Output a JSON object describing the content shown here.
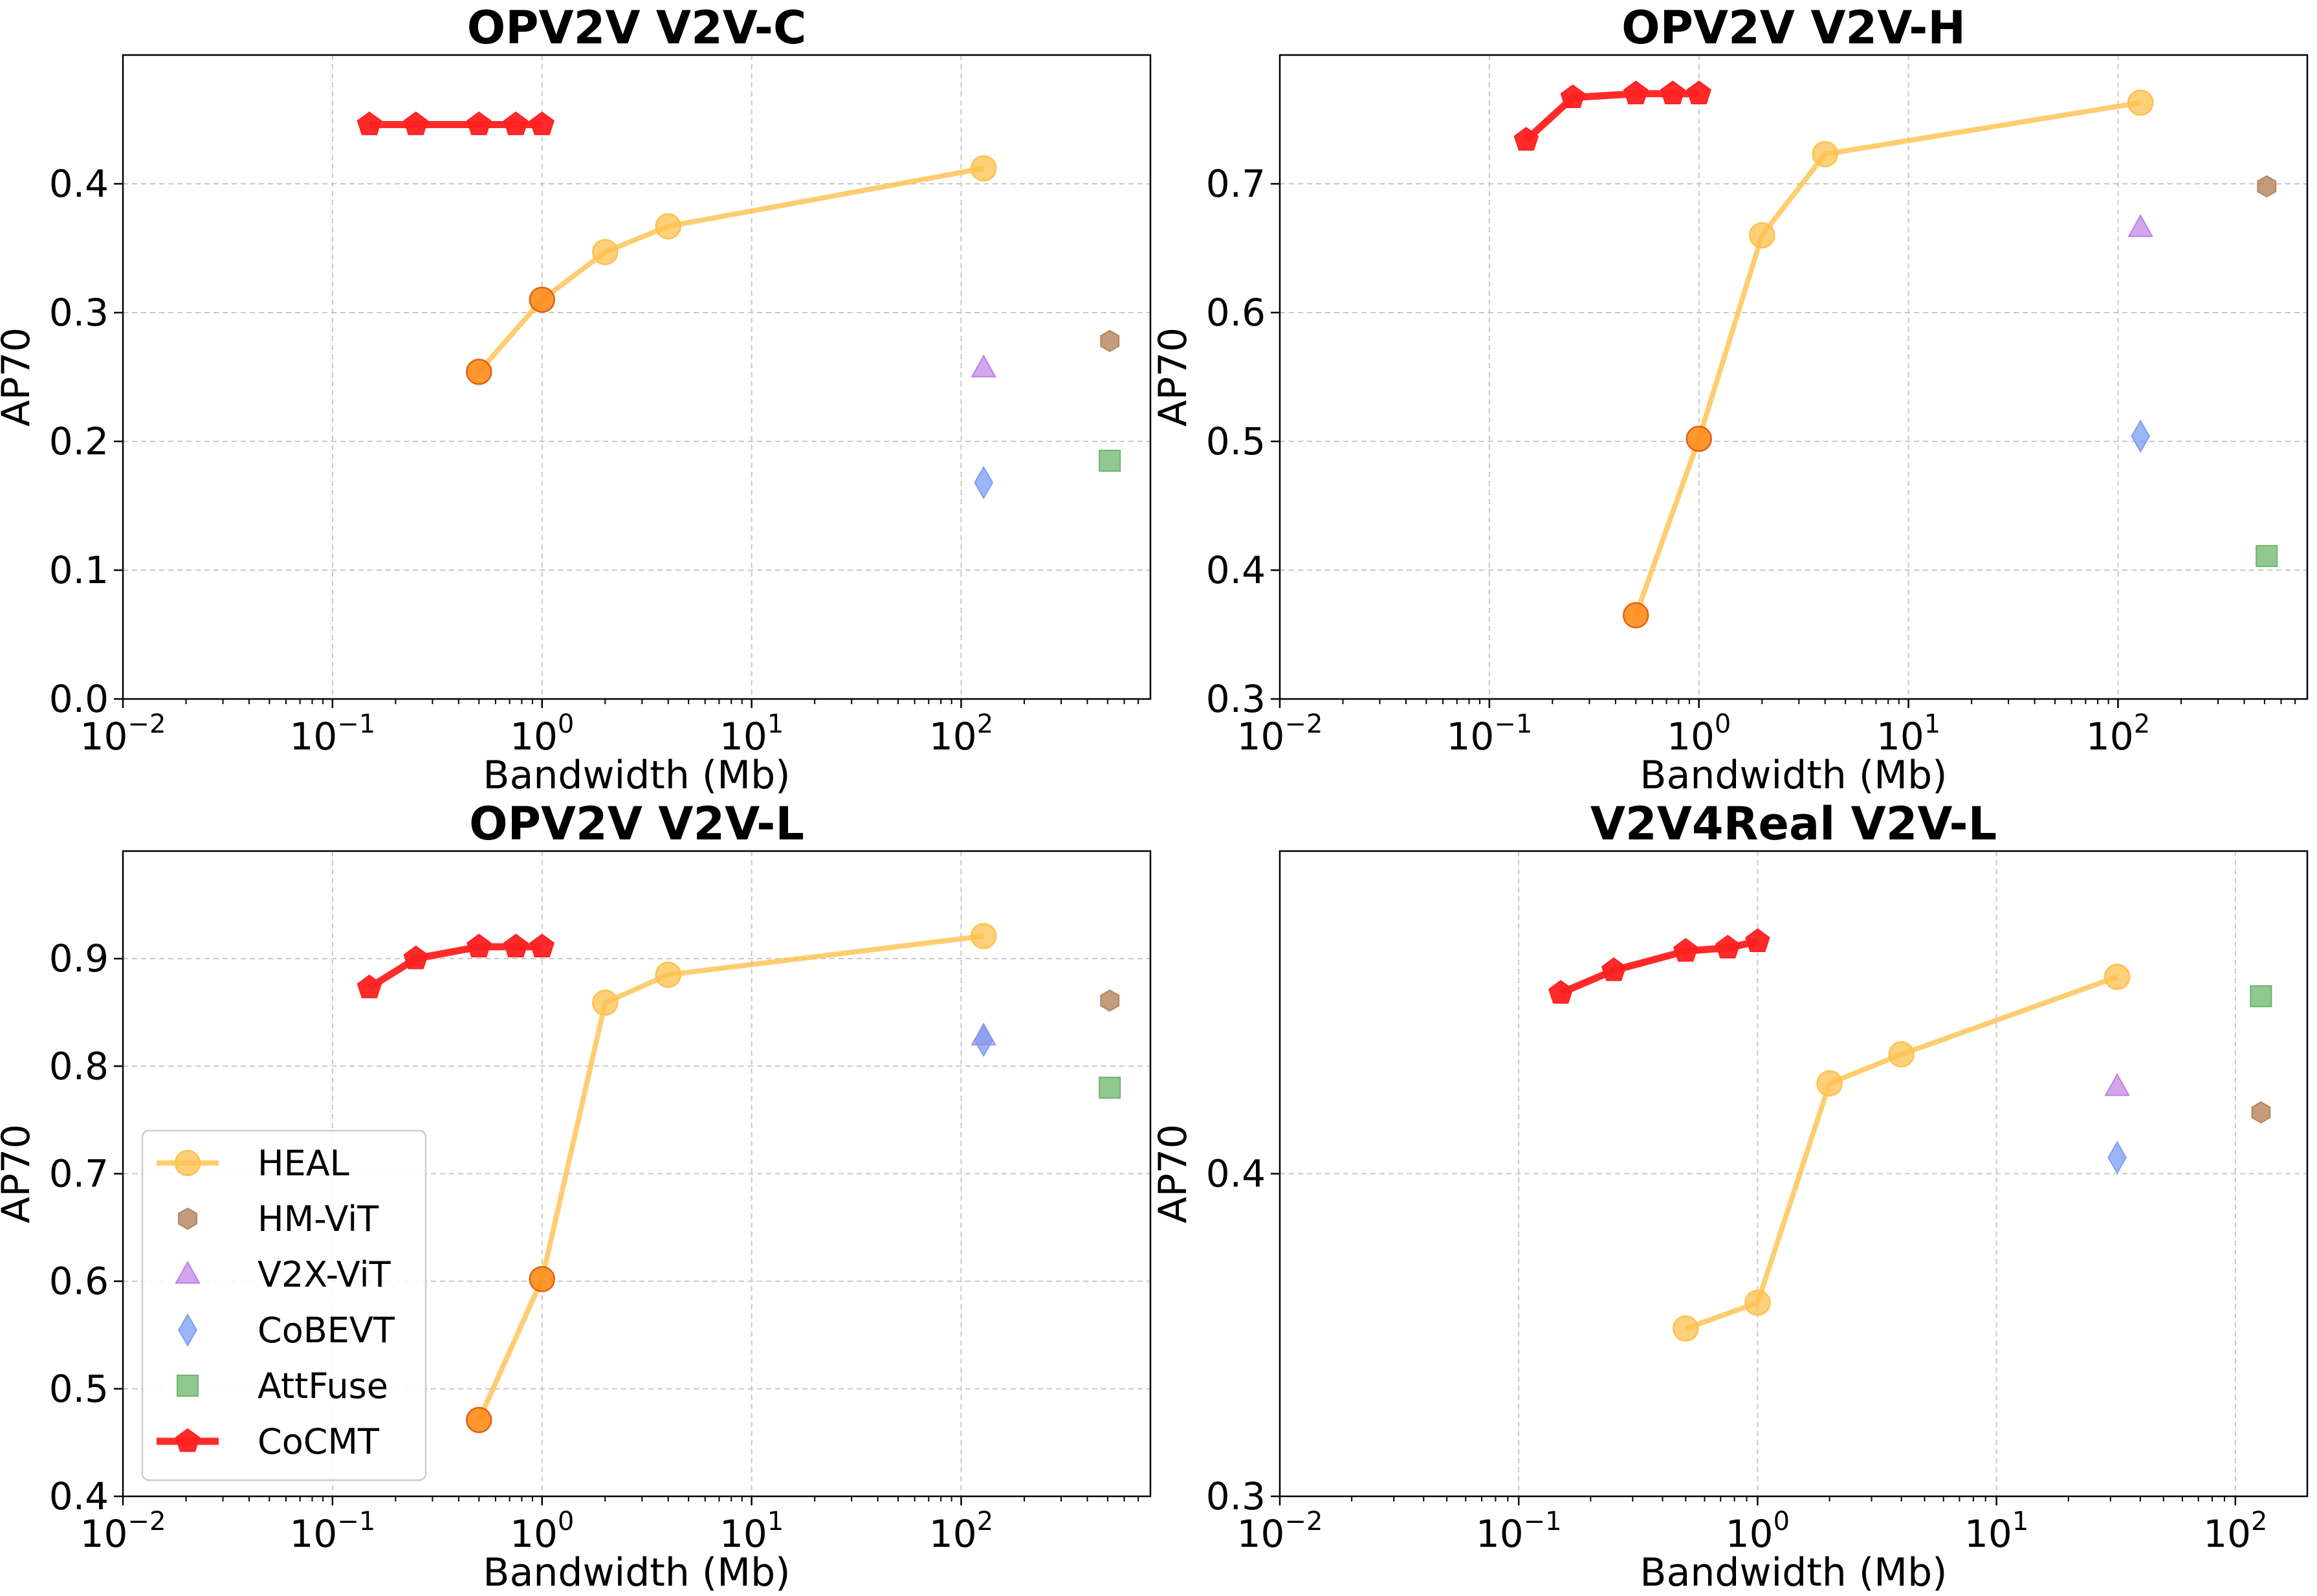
{
  "figure": {
    "xlabel": "Bandwidth (Mb)",
    "ylabel": "AP70"
  },
  "styles": {
    "HEAL": {
      "color": "#ffc04d",
      "marker": "circle-icon",
      "highlight": "#ff8c1a"
    },
    "HM-ViT": {
      "color": "#b5835a",
      "marker": "hexagon-icon"
    },
    "V2X-ViT": {
      "color": "#bf80e6",
      "marker": "triangle-icon"
    },
    "CoBEVT": {
      "color": "#7a9ef0",
      "marker": "diamond-icon"
    },
    "AttFuse": {
      "color": "#6bb56b",
      "marker": "square-icon"
    },
    "CoCMT": {
      "color": "#ff2020",
      "marker": "pentagon-icon"
    }
  },
  "legend": {
    "location": "lower-left",
    "panel": 2,
    "entries": [
      {
        "label": "HEAL"
      },
      {
        "label": "HM-ViT"
      },
      {
        "label": "V2X-ViT"
      },
      {
        "label": "CoBEVT"
      },
      {
        "label": "AttFuse"
      },
      {
        "label": "CoCMT"
      }
    ]
  },
  "chart_data": [
    {
      "type": "scatter",
      "title": "OPV2V V2V-C",
      "xlabel": "Bandwidth (Mb)",
      "ylabel": "AP70",
      "xscale": "log",
      "xlim": [
        0.01,
        800
      ],
      "ylim": [
        0.0,
        0.5
      ],
      "xticks": [
        {
          "base": "10",
          "exp": "−2",
          "value": 0.01
        },
        {
          "base": "10",
          "exp": "−1",
          "value": 0.1
        },
        {
          "base": "10",
          "exp": "0",
          "value": 1
        },
        {
          "base": "10",
          "exp": "1",
          "value": 10
        },
        {
          "base": "10",
          "exp": "2",
          "value": 100
        }
      ],
      "yticks": [
        {
          "label": "0.0",
          "value": 0.0
        },
        {
          "label": "0.1",
          "value": 0.1
        },
        {
          "label": "0.2",
          "value": 0.2
        },
        {
          "label": "0.3",
          "value": 0.3
        },
        {
          "label": "0.4",
          "value": 0.4
        }
      ],
      "grid": true,
      "series": [
        {
          "name": "HEAL",
          "type": "line",
          "x": [
            0.5,
            1.0,
            2.0,
            4.0,
            128
          ],
          "y": [
            0.254,
            0.31,
            0.347,
            0.367,
            0.412
          ],
          "highlight_idx": [
            0,
            1
          ]
        },
        {
          "name": "HM-ViT",
          "type": "scatter",
          "x": [
            512
          ],
          "y": [
            0.278
          ]
        },
        {
          "name": "V2X-ViT",
          "type": "scatter",
          "x": [
            128
          ],
          "y": [
            0.257
          ]
        },
        {
          "name": "CoBEVT",
          "type": "scatter",
          "x": [
            128
          ],
          "y": [
            0.168
          ]
        },
        {
          "name": "AttFuse",
          "type": "scatter",
          "x": [
            512
          ],
          "y": [
            0.185
          ]
        },
        {
          "name": "CoCMT",
          "type": "line",
          "x": [
            0.15,
            0.25,
            0.5,
            0.75,
            1.0
          ],
          "y": [
            0.446,
            0.446,
            0.446,
            0.446,
            0.446
          ]
        }
      ]
    },
    {
      "type": "scatter",
      "title": "OPV2V V2V-H",
      "xlabel": "Bandwidth (Mb)",
      "ylabel": "AP70",
      "xscale": "log",
      "xlim": [
        0.01,
        800
      ],
      "ylim": [
        0.3,
        0.8
      ],
      "xticks": [
        {
          "base": "10",
          "exp": "−2",
          "value": 0.01
        },
        {
          "base": "10",
          "exp": "−1",
          "value": 0.1
        },
        {
          "base": "10",
          "exp": "0",
          "value": 1
        },
        {
          "base": "10",
          "exp": "1",
          "value": 10
        },
        {
          "base": "10",
          "exp": "2",
          "value": 100
        }
      ],
      "yticks": [
        {
          "label": "0.3",
          "value": 0.3
        },
        {
          "label": "0.4",
          "value": 0.4
        },
        {
          "label": "0.5",
          "value": 0.5
        },
        {
          "label": "0.6",
          "value": 0.6
        },
        {
          "label": "0.7",
          "value": 0.7
        }
      ],
      "grid": true,
      "series": [
        {
          "name": "HEAL",
          "type": "line",
          "x": [
            0.5,
            1.0,
            2.0,
            4.0,
            128
          ],
          "y": [
            0.365,
            0.502,
            0.66,
            0.723,
            0.763
          ],
          "highlight_idx": [
            0,
            1
          ]
        },
        {
          "name": "HM-ViT",
          "type": "scatter",
          "x": [
            512
          ],
          "y": [
            0.698
          ]
        },
        {
          "name": "V2X-ViT",
          "type": "scatter",
          "x": [
            128
          ],
          "y": [
            0.666
          ]
        },
        {
          "name": "CoBEVT",
          "type": "scatter",
          "x": [
            128
          ],
          "y": [
            0.504
          ]
        },
        {
          "name": "AttFuse",
          "type": "scatter",
          "x": [
            512
          ],
          "y": [
            0.411
          ]
        },
        {
          "name": "CoCMT",
          "type": "line",
          "x": [
            0.15,
            0.25,
            0.5,
            0.75,
            1.0
          ],
          "y": [
            0.734,
            0.767,
            0.77,
            0.77,
            0.77
          ]
        }
      ]
    },
    {
      "type": "scatter",
      "title": "OPV2V V2V-L",
      "xlabel": "Bandwidth (Mb)",
      "ylabel": "AP70",
      "xscale": "log",
      "xlim": [
        0.01,
        800
      ],
      "ylim": [
        0.4,
        1.0
      ],
      "xticks": [
        {
          "base": "10",
          "exp": "−2",
          "value": 0.01
        },
        {
          "base": "10",
          "exp": "−1",
          "value": 0.1
        },
        {
          "base": "10",
          "exp": "0",
          "value": 1
        },
        {
          "base": "10",
          "exp": "1",
          "value": 10
        },
        {
          "base": "10",
          "exp": "2",
          "value": 100
        }
      ],
      "yticks": [
        {
          "label": "0.4",
          "value": 0.4
        },
        {
          "label": "0.5",
          "value": 0.5
        },
        {
          "label": "0.6",
          "value": 0.6
        },
        {
          "label": "0.7",
          "value": 0.7
        },
        {
          "label": "0.8",
          "value": 0.8
        },
        {
          "label": "0.9",
          "value": 0.9
        }
      ],
      "grid": true,
      "series": [
        {
          "name": "HEAL",
          "type": "line",
          "x": [
            0.5,
            1.0,
            2.0,
            4.0,
            128
          ],
          "y": [
            0.471,
            0.602,
            0.859,
            0.885,
            0.921
          ],
          "highlight_idx": [
            0,
            1
          ]
        },
        {
          "name": "HM-ViT",
          "type": "scatter",
          "x": [
            512
          ],
          "y": [
            0.861
          ]
        },
        {
          "name": "V2X-ViT",
          "type": "scatter",
          "x": [
            128
          ],
          "y": [
            0.828
          ]
        },
        {
          "name": "CoBEVT",
          "type": "scatter",
          "x": [
            128
          ],
          "y": [
            0.824
          ]
        },
        {
          "name": "AttFuse",
          "type": "scatter",
          "x": [
            512
          ],
          "y": [
            0.78
          ]
        },
        {
          "name": "CoCMT",
          "type": "line",
          "x": [
            0.15,
            0.25,
            0.5,
            0.75,
            1.0
          ],
          "y": [
            0.873,
            0.9,
            0.911,
            0.911,
            0.911
          ]
        }
      ]
    },
    {
      "type": "scatter",
      "title": "V2V4Real V2V-L",
      "xlabel": "Bandwidth (Mb)",
      "ylabel": "AP70",
      "xscale": "log",
      "xlim": [
        0.01,
        200
      ],
      "ylim": [
        0.3,
        0.5
      ],
      "xticks": [
        {
          "base": "10",
          "exp": "−2",
          "value": 0.01
        },
        {
          "base": "10",
          "exp": "−1",
          "value": 0.1
        },
        {
          "base": "10",
          "exp": "0",
          "value": 1
        },
        {
          "base": "10",
          "exp": "1",
          "value": 10
        },
        {
          "base": "10",
          "exp": "2",
          "value": 100
        }
      ],
      "yticks": [
        {
          "label": "0.3",
          "value": 0.3
        },
        {
          "label": "0.4",
          "value": 0.4
        }
      ],
      "grid": true,
      "series": [
        {
          "name": "HEAL",
          "type": "line",
          "x": [
            0.5,
            1.0,
            2.0,
            4.0,
            32
          ],
          "y": [
            0.352,
            0.36,
            0.428,
            0.437,
            0.461
          ],
          "highlight_idx": []
        },
        {
          "name": "HM-ViT",
          "type": "scatter",
          "x": [
            128
          ],
          "y": [
            0.419
          ]
        },
        {
          "name": "V2X-ViT",
          "type": "scatter",
          "x": [
            32
          ],
          "y": [
            0.427
          ]
        },
        {
          "name": "CoBEVT",
          "type": "scatter",
          "x": [
            32
          ],
          "y": [
            0.405
          ]
        },
        {
          "name": "AttFuse",
          "type": "scatter",
          "x": [
            128
          ],
          "y": [
            0.455
          ]
        },
        {
          "name": "CoCMT",
          "type": "line",
          "x": [
            0.15,
            0.25,
            0.5,
            0.75,
            1.0
          ],
          "y": [
            0.456,
            0.463,
            0.469,
            0.47,
            0.472
          ]
        }
      ]
    }
  ]
}
